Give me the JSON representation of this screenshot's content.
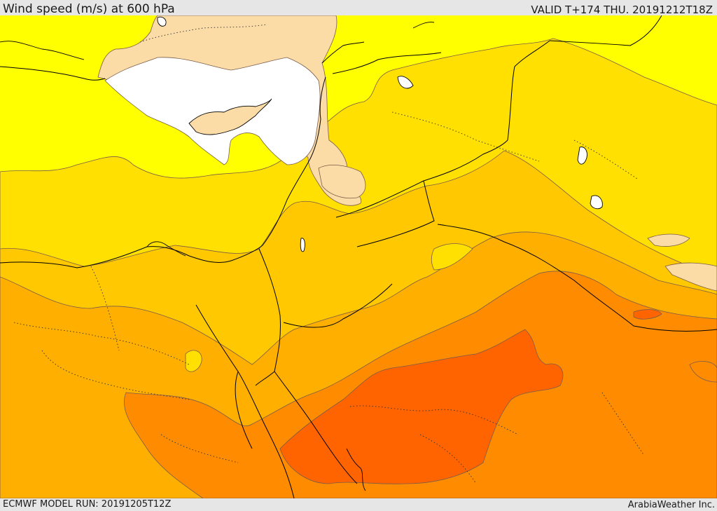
{
  "header": {
    "title": "Wind speed (m/s) at 600 hPa",
    "valid_time": "VALID T+174 THU. 20191212T18Z"
  },
  "footer": {
    "model_run": "ECMWF MODEL RUN: 20191205T12Z",
    "credit": "ArabiaWeather Inc."
  },
  "map": {
    "variable": "wind speed",
    "units": "m/s",
    "level": "600 hPa",
    "shading_colors": {
      "white": "#ffffff",
      "tan": "#fbdca7",
      "yellow": "#ffff00",
      "gold": "#ffe000",
      "light_orange": "#ffc800",
      "orange": "#ffaf00",
      "dark_orange": "#ff8c00",
      "red_orange": "#ff6400"
    }
  }
}
